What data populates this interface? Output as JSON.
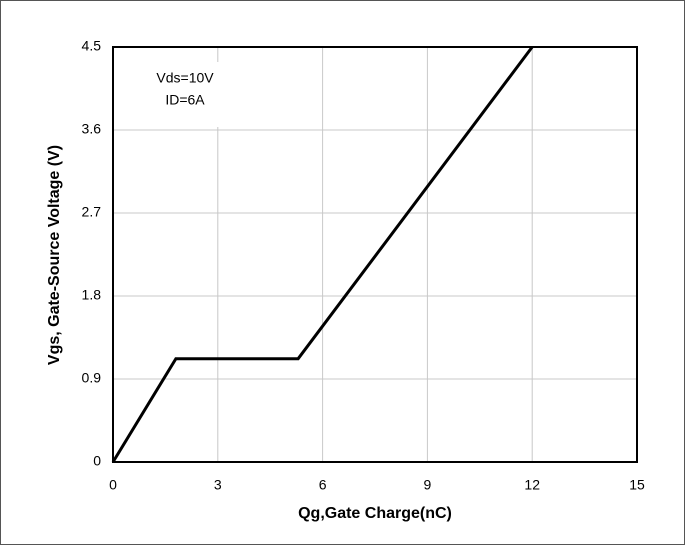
{
  "chart_data": {
    "type": "line",
    "x_label": "Qg,Gate Charge(nC)",
    "y_label": "Vgs, Gate-Source Voltage (V)",
    "annotations": [
      "Vds=10V",
      "ID=6A"
    ],
    "series": [
      {
        "color": "#000000",
        "x": [
          0,
          1.8,
          5.3,
          12
        ],
        "values": [
          0,
          1.12,
          1.12,
          4.5
        ]
      }
    ],
    "xlim": [
      0,
      15
    ],
    "xticks": [
      0,
      3,
      6,
      9,
      12,
      15
    ],
    "ylim": [
      0,
      4.5
    ],
    "yticks": [
      0,
      0.9,
      1.8,
      2.7,
      3.6,
      4.5
    ],
    "grid": true
  }
}
